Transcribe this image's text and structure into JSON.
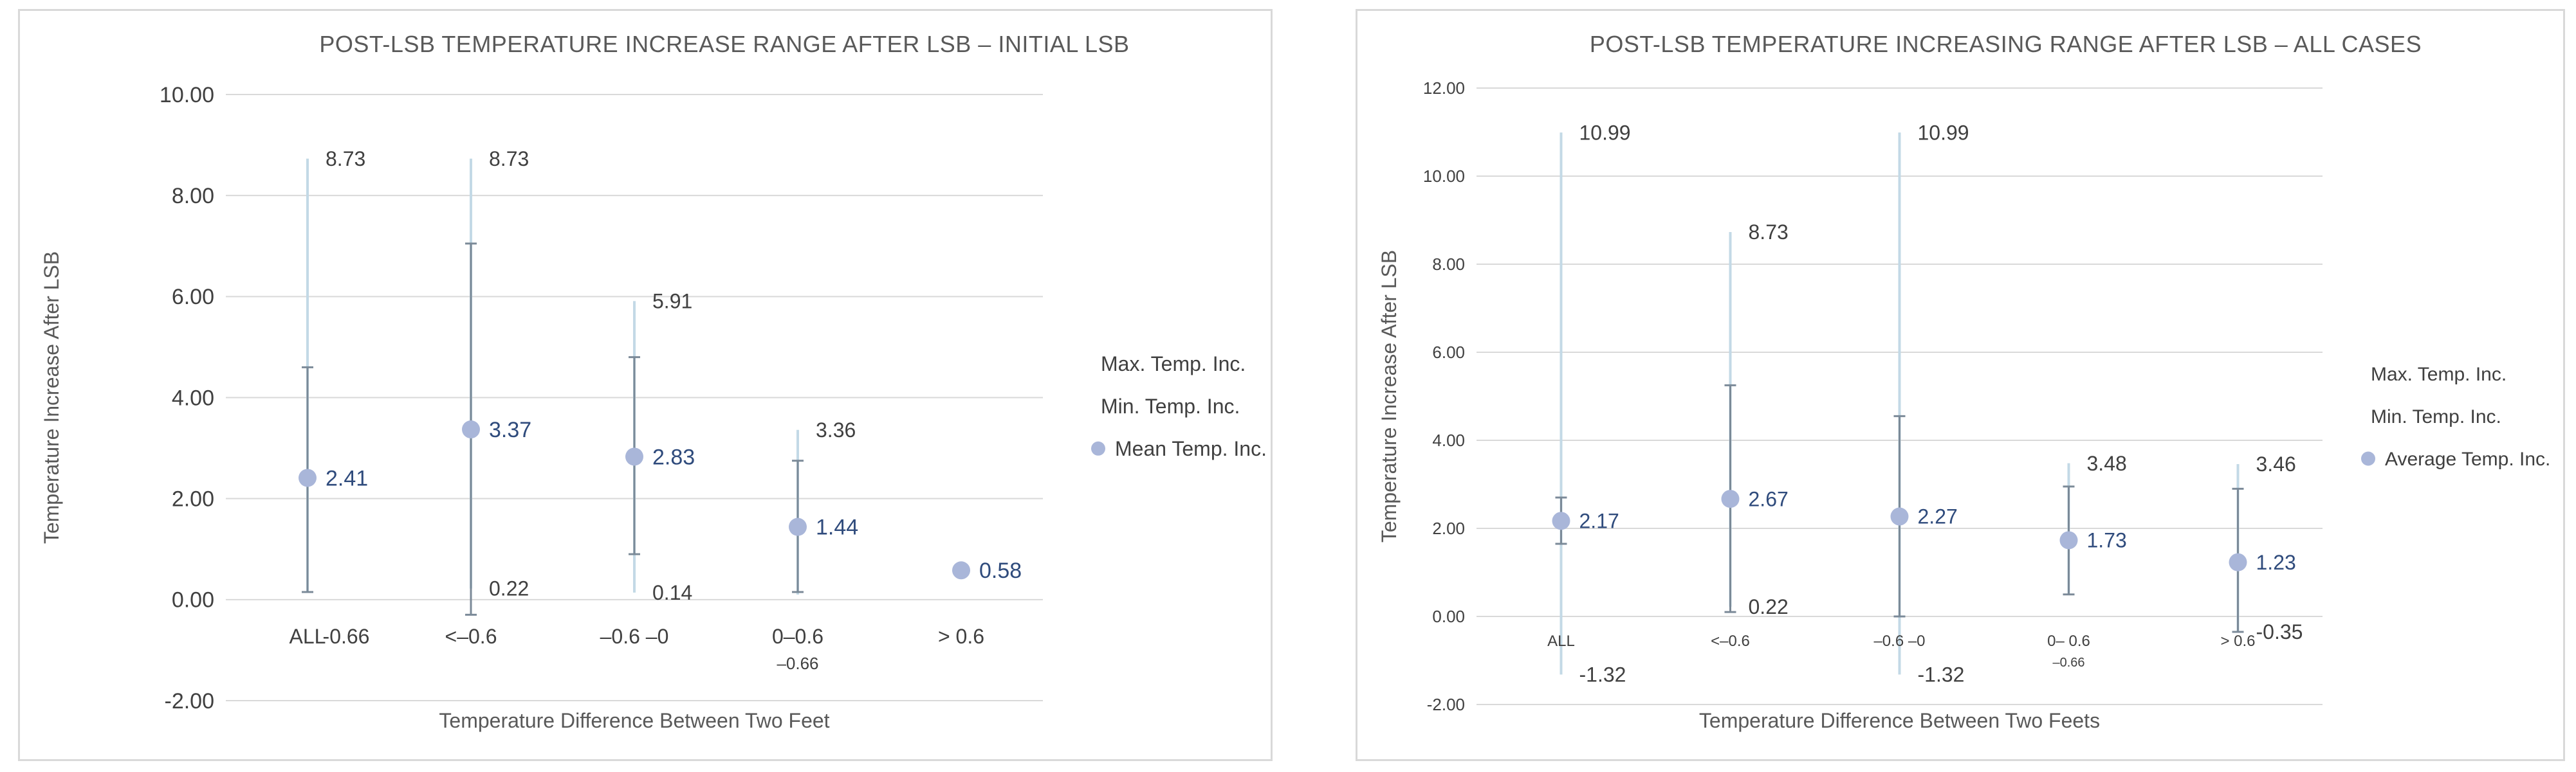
{
  "chart_data": [
    {
      "type": "scatter",
      "title": "POST-LSB TEMPERATURE INCREASE RANGE AFTER LSB – INITIAL LSB",
      "xlabel": "Temperature Difference Between Two Feet",
      "ylabel": "Temperature Increase After LSB",
      "ylim": [
        -2,
        10
      ],
      "ytick_step": 2,
      "ytick_labels": [
        "-2.00",
        "0.00",
        "2.00",
        "4.00",
        "6.00",
        "8.00",
        "10.00"
      ],
      "grid": true,
      "legend_position": "right",
      "categories": [
        "ALL",
        "<–0.6",
        "–0.6 –0",
        "0–0.6",
        "> 0.6"
      ],
      "category_notes": [
        "-0.66",
        "",
        "",
        "–0.66",
        ""
      ],
      "series": [
        {
          "name": "Max. Temp. Inc.",
          "values": [
            8.73,
            8.73,
            5.91,
            3.36,
            null
          ]
        },
        {
          "name": "Min. Temp. Inc.",
          "values": [
            0.14,
            0.22,
            0.14,
            0.1,
            0.58
          ]
        },
        {
          "name": "Mean Temp. Inc.",
          "values": [
            2.41,
            3.37,
            2.83,
            1.44,
            0.58
          ]
        }
      ],
      "error_upper": [
        4.6,
        7.05,
        4.8,
        2.75,
        null
      ],
      "error_lower": [
        0.15,
        -0.3,
        0.9,
        0.15,
        null
      ],
      "data_labels": {
        "max": [
          "8.73",
          "8.73",
          "5.91",
          "3.36",
          ""
        ],
        "min": [
          "",
          "0.22",
          "0.14",
          "",
          ""
        ],
        "mean": [
          "2.41",
          "3.37",
          "2.83",
          "1.44",
          "0.58"
        ]
      },
      "colors": {
        "mean_marker": "#a9b6d9",
        "mean_label": "#2f4b7c",
        "range_line": "#c3d9e6",
        "error_bar": "#7b8a98",
        "grid": "#d9d9d9"
      }
    },
    {
      "type": "scatter",
      "title": "POST-LSB TEMPERATURE INCREASING RANGE AFTER LSB – ALL CASES",
      "xlabel": "Temperature  Difference Between Two Feets",
      "ylabel": "Temperature  Increase After LSB",
      "ylim": [
        -2,
        12
      ],
      "ytick_step": 2,
      "ytick_labels": [
        "-2.00",
        "0.00",
        "2.00",
        "4.00",
        "6.00",
        "8.00",
        "10.00",
        "12.00"
      ],
      "grid": true,
      "legend_position": "right",
      "categories": [
        "ALL",
        "<–0.6",
        "–0.6 –0",
        "0– 0.6",
        "> 0.6"
      ],
      "category_notes": [
        "",
        "",
        "",
        "–0.66",
        ""
      ],
      "series": [
        {
          "name": "Max. Temp. Inc.",
          "values": [
            10.99,
            8.73,
            10.99,
            3.48,
            3.46
          ]
        },
        {
          "name": "Min. Temp. Inc.",
          "values": [
            -1.32,
            0.22,
            -1.32,
            0.5,
            -0.35
          ]
        },
        {
          "name": "Average Temp. Inc.",
          "values": [
            2.17,
            2.67,
            2.27,
            1.73,
            1.23
          ]
        }
      ],
      "error_upper": [
        2.7,
        5.25,
        4.55,
        2.95,
        2.9
      ],
      "error_lower": [
        1.65,
        0.1,
        0.0,
        0.5,
        -0.35
      ],
      "data_labels": {
        "max": [
          "10.99",
          "8.73",
          "10.99",
          "3.48",
          "3.46"
        ],
        "min": [
          "-1.32",
          "0.22",
          "-1.32",
          "",
          "-0.35"
        ],
        "mean": [
          "2.17",
          "2.67",
          "2.27",
          "1.73",
          "1.23"
        ]
      },
      "colors": {
        "mean_marker": "#a9b6d9",
        "mean_label": "#2f4b7c",
        "range_line": "#c3d9e6",
        "error_bar": "#7b8a98",
        "grid": "#d9d9d9"
      }
    }
  ]
}
